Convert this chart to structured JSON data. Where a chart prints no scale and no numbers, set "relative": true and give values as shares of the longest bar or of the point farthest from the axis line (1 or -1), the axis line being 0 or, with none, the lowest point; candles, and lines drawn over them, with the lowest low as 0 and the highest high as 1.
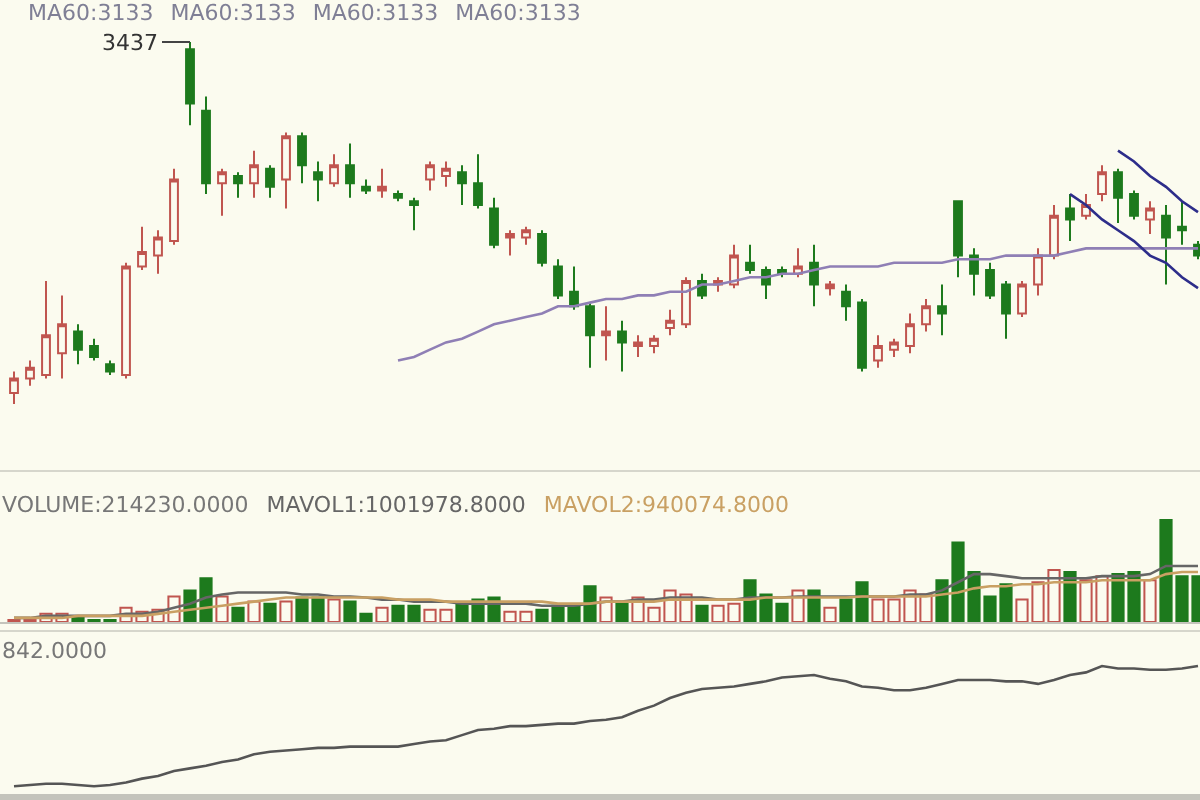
{
  "chart_data": [
    {
      "type": "candlestick",
      "relative": true,
      "subtitle": "MA60:3133 MA60:3133 MA60:3133 MA60:3133",
      "categories": [
        null,
        null,
        null,
        null,
        null,
        null,
        null,
        null,
        null,
        null,
        null,
        null,
        null,
        null,
        null,
        null,
        null,
        null,
        null,
        null,
        null,
        null,
        null,
        null,
        null,
        null,
        null,
        null,
        null,
        null,
        null,
        null,
        null,
        null,
        null,
        null,
        null,
        null,
        null,
        null,
        null,
        null,
        null,
        null,
        null,
        null,
        null,
        null,
        null,
        null,
        null,
        null,
        null,
        null,
        null,
        null,
        null,
        null,
        null,
        null,
        null,
        null,
        null,
        null,
        null,
        null,
        null,
        null,
        null,
        null,
        null,
        null,
        null,
        null,
        null
      ],
      "ohlc": [
        [
          0.03,
          0.09,
          0,
          0.07
        ],
        [
          0.07,
          0.12,
          0.05,
          0.1
        ],
        [
          0.08,
          0.34,
          0.07,
          0.19
        ],
        [
          0.14,
          0.3,
          0.07,
          0.22
        ],
        [
          0.2,
          0.22,
          0.11,
          0.15
        ],
        [
          0.16,
          0.18,
          0.12,
          0.13
        ],
        [
          0.11,
          0.12,
          0.08,
          0.09
        ],
        [
          0.08,
          0.39,
          0.07,
          0.38
        ],
        [
          0.38,
          0.49,
          0.37,
          0.42
        ],
        [
          0.41,
          0.48,
          0.36,
          0.46
        ],
        [
          0.45,
          0.65,
          0.44,
          0.62
        ],
        [
          0.98,
          1,
          0.77,
          0.83
        ],
        [
          0.81,
          0.85,
          0.58,
          0.61
        ],
        [
          0.61,
          0.65,
          0.52,
          0.64
        ],
        [
          0.63,
          0.64,
          0.57,
          0.61
        ],
        [
          0.61,
          0.7,
          0.57,
          0.66
        ],
        [
          0.65,
          0.66,
          0.57,
          0.6
        ],
        [
          0.62,
          0.75,
          0.54,
          0.74
        ],
        [
          0.74,
          0.75,
          0.61,
          0.66
        ],
        [
          0.64,
          0.67,
          0.56,
          0.62
        ],
        [
          0.61,
          0.69,
          0.6,
          0.66
        ],
        [
          0.66,
          0.72,
          0.57,
          0.61
        ],
        [
          0.6,
          0.62,
          0.58,
          0.59
        ],
        [
          0.59,
          0.65,
          0.57,
          0.6
        ],
        [
          0.58,
          0.59,
          0.56,
          0.57
        ],
        [
          0.56,
          0.57,
          0.48,
          0.55
        ],
        [
          0.62,
          0.67,
          0.59,
          0.66
        ],
        [
          0.63,
          0.67,
          0.6,
          0.65
        ],
        [
          0.64,
          0.66,
          0.55,
          0.61
        ],
        [
          0.61,
          0.69,
          0.54,
          0.55
        ],
        [
          0.54,
          0.57,
          0.43,
          0.44
        ],
        [
          0.46,
          0.48,
          0.41,
          0.47
        ],
        [
          0.46,
          0.49,
          0.44,
          0.48
        ],
        [
          0.47,
          0.48,
          0.38,
          0.39
        ],
        [
          0.38,
          0.4,
          0.29,
          0.3
        ],
        [
          0.31,
          0.38,
          0.26,
          0.27
        ],
        [
          0.27,
          0.28,
          0.1,
          0.19
        ],
        [
          0.19,
          0.27,
          0.12,
          0.2
        ],
        [
          0.2,
          0.23,
          0.09,
          0.17
        ],
        [
          0.16,
          0.19,
          0.13,
          0.17
        ],
        [
          0.16,
          0.19,
          0.14,
          0.18
        ],
        [
          0.21,
          0.26,
          0.19,
          0.23
        ],
        [
          0.22,
          0.35,
          0.21,
          0.34
        ],
        [
          0.34,
          0.36,
          0.29,
          0.3
        ],
        [
          0.33,
          0.35,
          0.31,
          0.34
        ],
        [
          0.33,
          0.44,
          0.32,
          0.41
        ],
        [
          0.39,
          0.44,
          0.36,
          0.37
        ],
        [
          0.37,
          0.38,
          0.29,
          0.33
        ],
        [
          0.37,
          0.38,
          0.35,
          0.36
        ],
        [
          0.36,
          0.43,
          0.35,
          0.38
        ],
        [
          0.39,
          0.44,
          0.27,
          0.33
        ],
        [
          0.32,
          0.34,
          0.3,
          0.33
        ],
        [
          0.31,
          0.33,
          0.23,
          0.27
        ],
        [
          0.28,
          0.29,
          0.09,
          0.1
        ],
        [
          0.12,
          0.19,
          0.1,
          0.16
        ],
        [
          0.15,
          0.18,
          0.13,
          0.17
        ],
        [
          0.16,
          0.25,
          0.14,
          0.22
        ],
        [
          0.22,
          0.29,
          0.2,
          0.27
        ],
        [
          0.27,
          0.33,
          0.19,
          0.25
        ],
        [
          0.56,
          0.56,
          0.35,
          0.41
        ],
        [
          0.41,
          0.43,
          0.3,
          0.36
        ],
        [
          0.37,
          0.39,
          0.29,
          0.3
        ],
        [
          0.33,
          0.34,
          0.18,
          0.25
        ],
        [
          0.25,
          0.34,
          0.24,
          0.33
        ],
        [
          0.33,
          0.43,
          0.3,
          0.41
        ],
        [
          0.41,
          0.55,
          0.4,
          0.52
        ],
        [
          0.54,
          0.58,
          0.45,
          0.51
        ],
        [
          0.52,
          0.58,
          0.51,
          0.55
        ],
        [
          0.58,
          0.66,
          0.56,
          0.64
        ],
        [
          0.64,
          0.65,
          0.5,
          0.57
        ],
        [
          0.58,
          0.59,
          0.51,
          0.52
        ],
        [
          0.51,
          0.56,
          0.47,
          0.54
        ],
        [
          0.52,
          0.55,
          0.33,
          0.46
        ],
        [
          0.49,
          0.56,
          0.44,
          0.48
        ],
        [
          0.44,
          0.45,
          0.4,
          0.41
        ]
      ],
      "colors": [
        "#c0554f",
        "#c0554f",
        "#c0554f",
        "#c0554f",
        "#1d7a1d",
        "#1d7a1d",
        "#1d7a1d",
        "#c0554f",
        "#c0554f",
        "#c0554f",
        "#c0554f",
        "#1d7a1d",
        "#1d7a1d",
        "#c0554f",
        "#1d7a1d",
        "#c0554f",
        "#1d7a1d",
        "#c0554f",
        "#1d7a1d",
        "#1d7a1d",
        "#c0554f",
        "#1d7a1d",
        "#1d7a1d",
        "#c0554f",
        "#1d7a1d",
        "#1d7a1d",
        "#c0554f",
        "#c0554f",
        "#1d7a1d",
        "#1d7a1d",
        "#1d7a1d",
        "#c0554f",
        "#c0554f",
        "#1d7a1d",
        "#1d7a1d",
        "#1d7a1d",
        "#1d7a1d",
        "#c0554f",
        "#1d7a1d",
        "#c0554f",
        "#c0554f",
        "#c0554f",
        "#c0554f",
        "#1d7a1d",
        "#c0554f",
        "#c0554f",
        "#1d7a1d",
        "#1d7a1d",
        "#1d7a1d",
        "#c0554f",
        "#1d7a1d",
        "#c0554f",
        "#1d7a1d",
        "#1d7a1d",
        "#c0554f",
        "#c0554f",
        "#c0554f",
        "#c0554f",
        "#1d7a1d",
        "#1d7a1d",
        "#1d7a1d",
        "#1d7a1d",
        "#1d7a1d",
        "#c0554f",
        "#c0554f",
        "#c0554f",
        "#1d7a1d",
        "#c0554f",
        "#c0554f",
        "#1d7a1d",
        "#1d7a1d",
        "#c0554f",
        "#1d7a1d",
        "#1d7a1d",
        "#1d7a1d"
      ],
      "series": [
        {
          "type": "line",
          "color": "#8f7fb5",
          "values": [
            null,
            null,
            null,
            null,
            null,
            null,
            null,
            null,
            null,
            null,
            null,
            null,
            null,
            null,
            null,
            null,
            null,
            null,
            null,
            null,
            null,
            null,
            null,
            null,
            0.12,
            0.13,
            0.15,
            0.17,
            0.18,
            0.2,
            0.22,
            0.23,
            0.24,
            0.25,
            0.27,
            0.27,
            0.28,
            0.29,
            0.29,
            0.3,
            0.3,
            0.31,
            0.31,
            0.33,
            0.33,
            0.34,
            0.35,
            0.35,
            0.36,
            0.36,
            0.37,
            0.38,
            0.38,
            0.38,
            0.38,
            0.39,
            0.39,
            0.39,
            0.39,
            0.4,
            0.4,
            0.4,
            0.41,
            0.41,
            0.41,
            0.41,
            0.42,
            0.43,
            0.43,
            0.43,
            0.43,
            0.43,
            0.43,
            0.43,
            0.43
          ]
        },
        {
          "type": "line",
          "color": "#2d2d8a",
          "values": [
            null,
            null,
            null,
            null,
            null,
            null,
            null,
            null,
            null,
            null,
            null,
            null,
            null,
            null,
            null,
            null,
            null,
            null,
            null,
            null,
            null,
            null,
            null,
            null,
            null,
            null,
            null,
            null,
            null,
            null,
            null,
            null,
            null,
            null,
            null,
            null,
            null,
            null,
            null,
            null,
            null,
            null,
            null,
            null,
            null,
            null,
            null,
            null,
            null,
            null,
            null,
            null,
            null,
            null,
            null,
            null,
            null,
            null,
            null,
            null,
            null,
            null,
            null,
            null,
            null,
            null,
            null,
            null,
            null,
            0.7,
            0.67,
            0.63,
            0.6,
            0.56,
            0.53
          ]
        },
        {
          "type": "line",
          "color": "#2d2d8a",
          "values": [
            null,
            null,
            null,
            null,
            null,
            null,
            null,
            null,
            null,
            null,
            null,
            null,
            null,
            null,
            null,
            null,
            null,
            null,
            null,
            null,
            null,
            null,
            null,
            null,
            null,
            null,
            null,
            null,
            null,
            null,
            null,
            null,
            null,
            null,
            null,
            null,
            null,
            null,
            null,
            null,
            null,
            null,
            null,
            null,
            null,
            null,
            null,
            null,
            null,
            null,
            null,
            null,
            null,
            null,
            null,
            null,
            null,
            null,
            null,
            null,
            null,
            null,
            null,
            null,
            null,
            null,
            0.58,
            0.55,
            0.51,
            0.48,
            0.45,
            0.41,
            0.39,
            0.35,
            0.32
          ]
        }
      ],
      "annotations": [
        "3437"
      ]
    },
    {
      "type": "bar",
      "relative": true,
      "categories": [
        null,
        null,
        null,
        null,
        null,
        null,
        null,
        null,
        null,
        null,
        null,
        null,
        null,
        null,
        null,
        null,
        null,
        null,
        null,
        null,
        null,
        null,
        null,
        null,
        null,
        null,
        null,
        null,
        null,
        null,
        null,
        null,
        null,
        null,
        null,
        null,
        null,
        null,
        null,
        null,
        null,
        null,
        null,
        null,
        null,
        null,
        null,
        null,
        null,
        null,
        null,
        null,
        null,
        null,
        null,
        null,
        null,
        null,
        null,
        null,
        null,
        null,
        null,
        null,
        null,
        null,
        null,
        null,
        null,
        null,
        null,
        null,
        null,
        null,
        null
      ],
      "values": [
        0.02,
        0.02,
        0.08,
        0.08,
        0.04,
        0.02,
        0.02,
        0.14,
        0.1,
        0.12,
        0.25,
        0.31,
        0.43,
        0.25,
        0.14,
        0.2,
        0.18,
        0.2,
        0.24,
        0.24,
        0.22,
        0.2,
        0.08,
        0.14,
        0.16,
        0.16,
        0.12,
        0.12,
        0.18,
        0.22,
        0.24,
        0.1,
        0.1,
        0.12,
        0.16,
        0.16,
        0.35,
        0.24,
        0.18,
        0.24,
        0.14,
        0.31,
        0.27,
        0.16,
        0.16,
        0.18,
        0.41,
        0.27,
        0.18,
        0.31,
        0.31,
        0.14,
        0.22,
        0.39,
        0.22,
        0.22,
        0.31,
        0.27,
        0.41,
        0.78,
        0.49,
        0.25,
        0.37,
        0.22,
        0.39,
        0.51,
        0.49,
        0.41,
        0.45,
        0.47,
        0.49,
        0.41,
        1,
        0.45,
        0.45
      ],
      "colors": [
        "#c0554f",
        "#c0554f",
        "#c0554f",
        "#c0554f",
        "#1d7a1d",
        "#1d7a1d",
        "#1d7a1d",
        "#c0554f",
        "#c0554f",
        "#c0554f",
        "#c0554f",
        "#1d7a1d",
        "#1d7a1d",
        "#c0554f",
        "#1d7a1d",
        "#c0554f",
        "#1d7a1d",
        "#c0554f",
        "#1d7a1d",
        "#1d7a1d",
        "#c0554f",
        "#1d7a1d",
        "#1d7a1d",
        "#c0554f",
        "#1d7a1d",
        "#1d7a1d",
        "#c0554f",
        "#c0554f",
        "#1d7a1d",
        "#1d7a1d",
        "#1d7a1d",
        "#c0554f",
        "#c0554f",
        "#1d7a1d",
        "#1d7a1d",
        "#1d7a1d",
        "#1d7a1d",
        "#c0554f",
        "#1d7a1d",
        "#c0554f",
        "#c0554f",
        "#c0554f",
        "#c0554f",
        "#1d7a1d",
        "#c0554f",
        "#c0554f",
        "#1d7a1d",
        "#1d7a1d",
        "#1d7a1d",
        "#c0554f",
        "#1d7a1d",
        "#c0554f",
        "#1d7a1d",
        "#1d7a1d",
        "#c0554f",
        "#c0554f",
        "#c0554f",
        "#c0554f",
        "#1d7a1d",
        "#1d7a1d",
        "#1d7a1d",
        "#1d7a1d",
        "#1d7a1d",
        "#c0554f",
        "#c0554f",
        "#c0554f",
        "#1d7a1d",
        "#c0554f",
        "#c0554f",
        "#1d7a1d",
        "#1d7a1d",
        "#c0554f",
        "#1d7a1d",
        "#1d7a1d",
        "#1d7a1d"
      ],
      "series": [
        {
          "type": "line",
          "name": "MAVOL1:1001978.8000",
          "color": "#666666",
          "values": [
            0.04,
            0.04,
            0.06,
            0.06,
            0.06,
            0.06,
            0.06,
            0.08,
            0.08,
            0.1,
            0.14,
            0.18,
            0.24,
            0.27,
            0.29,
            0.29,
            0.29,
            0.29,
            0.27,
            0.27,
            0.25,
            0.25,
            0.24,
            0.22,
            0.22,
            0.2,
            0.2,
            0.2,
            0.18,
            0.18,
            0.18,
            0.18,
            0.18,
            0.16,
            0.16,
            0.16,
            0.18,
            0.2,
            0.2,
            0.22,
            0.22,
            0.24,
            0.24,
            0.24,
            0.22,
            0.22,
            0.24,
            0.24,
            0.24,
            0.25,
            0.25,
            0.25,
            0.25,
            0.25,
            0.25,
            0.25,
            0.27,
            0.27,
            0.31,
            0.39,
            0.47,
            0.47,
            0.45,
            0.43,
            0.43,
            0.43,
            0.43,
            0.43,
            0.45,
            0.45,
            0.45,
            0.47,
            0.55,
            0.55,
            0.55
          ]
        },
        {
          "type": "line",
          "name": "MAVOL2:940074.8000",
          "color": "#c9a063",
          "values": [
            0.04,
            0.04,
            0.04,
            0.04,
            0.06,
            0.06,
            0.06,
            0.06,
            0.06,
            0.08,
            0.1,
            0.12,
            0.14,
            0.16,
            0.18,
            0.2,
            0.22,
            0.24,
            0.24,
            0.24,
            0.24,
            0.24,
            0.24,
            0.24,
            0.22,
            0.22,
            0.22,
            0.2,
            0.2,
            0.2,
            0.2,
            0.2,
            0.2,
            0.2,
            0.18,
            0.18,
            0.18,
            0.2,
            0.2,
            0.2,
            0.2,
            0.22,
            0.22,
            0.22,
            0.22,
            0.22,
            0.22,
            0.24,
            0.24,
            0.24,
            0.24,
            0.24,
            0.24,
            0.25,
            0.25,
            0.25,
            0.25,
            0.25,
            0.27,
            0.29,
            0.33,
            0.35,
            0.35,
            0.37,
            0.37,
            0.39,
            0.39,
            0.39,
            0.41,
            0.41,
            0.41,
            0.41,
            0.47,
            0.49,
            0.49
          ]
        }
      ],
      "annotations": [
        "VOLUME:214230.0000"
      ]
    },
    {
      "type": "line",
      "relative": true,
      "categories": [
        null,
        null,
        null,
        null,
        null,
        null,
        null,
        null,
        null,
        null,
        null,
        null,
        null,
        null,
        null,
        null,
        null,
        null,
        null,
        null,
        null,
        null,
        null,
        null,
        null,
        null,
        null,
        null,
        null,
        null,
        null,
        null,
        null,
        null,
        null,
        null,
        null,
        null,
        null,
        null,
        null,
        null,
        null,
        null,
        null,
        null,
        null,
        null,
        null,
        null,
        null,
        null,
        null,
        null,
        null,
        null,
        null,
        null,
        null,
        null,
        null,
        null,
        null,
        null,
        null,
        null,
        null,
        null,
        null,
        null,
        null,
        null,
        null,
        null,
        null
      ],
      "color": "#555555",
      "values": [
        0.06,
        0.07,
        0.08,
        0.08,
        0.07,
        0.06,
        0.07,
        0.09,
        0.12,
        0.14,
        0.18,
        0.2,
        0.22,
        0.25,
        0.27,
        0.31,
        0.33,
        0.34,
        0.35,
        0.36,
        0.36,
        0.37,
        0.37,
        0.37,
        0.37,
        0.39,
        0.41,
        0.42,
        0.46,
        0.5,
        0.51,
        0.53,
        0.53,
        0.54,
        0.55,
        0.55,
        0.57,
        0.58,
        0.6,
        0.65,
        0.69,
        0.75,
        0.79,
        0.82,
        0.83,
        0.84,
        0.86,
        0.88,
        0.91,
        0.92,
        0.93,
        0.9,
        0.88,
        0.84,
        0.83,
        0.81,
        0.81,
        0.83,
        0.86,
        0.89,
        0.89,
        0.89,
        0.88,
        0.88,
        0.86,
        0.89,
        0.93,
        0.95,
        1.0,
        0.98,
        0.98,
        0.97,
        0.97,
        0.98,
        1.0
      ],
      "annotations": [
        "842.0000"
      ]
    }
  ]
}
